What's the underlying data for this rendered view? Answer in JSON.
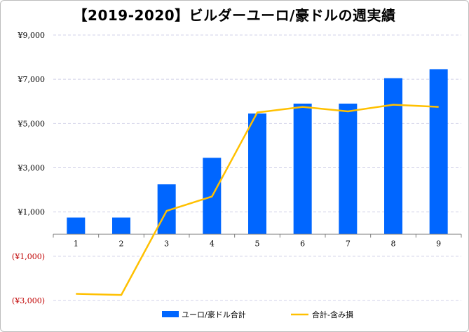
{
  "chart_data": {
    "type": "bar",
    "title": "【2019-2020】ビルダーユーロ/豪ドルの週実績",
    "categories": [
      "1",
      "2",
      "3",
      "4",
      "5",
      "6",
      "7",
      "8",
      "9"
    ],
    "series": [
      {
        "name": "ユーロ/豪ドル合計",
        "type": "bar",
        "color": "#0066ff",
        "values": [
          750,
          750,
          2250,
          3450,
          5450,
          5900,
          5900,
          7050,
          7450
        ]
      },
      {
        "name": "合計-含み損",
        "type": "line",
        "color": "#ffc000",
        "values": [
          -2700,
          -2750,
          1050,
          1700,
          5500,
          5750,
          5550,
          5850,
          5750
        ]
      }
    ],
    "y_ticks": [
      {
        "value": 9000,
        "label": "¥9,000"
      },
      {
        "value": 7000,
        "label": "¥7,000"
      },
      {
        "value": 5000,
        "label": "¥5,000"
      },
      {
        "value": 3000,
        "label": "¥3,000"
      },
      {
        "value": 1000,
        "label": "¥1,000"
      },
      {
        "value": -1000,
        "label": "(¥1,000)"
      },
      {
        "value": -3000,
        "label": "(¥3,000)"
      }
    ],
    "ylim": [
      -3000,
      9000
    ],
    "grid": true,
    "legend_position": "bottom",
    "negative_label_color": "#c00000",
    "gridline_color": "#d0d0e8"
  }
}
